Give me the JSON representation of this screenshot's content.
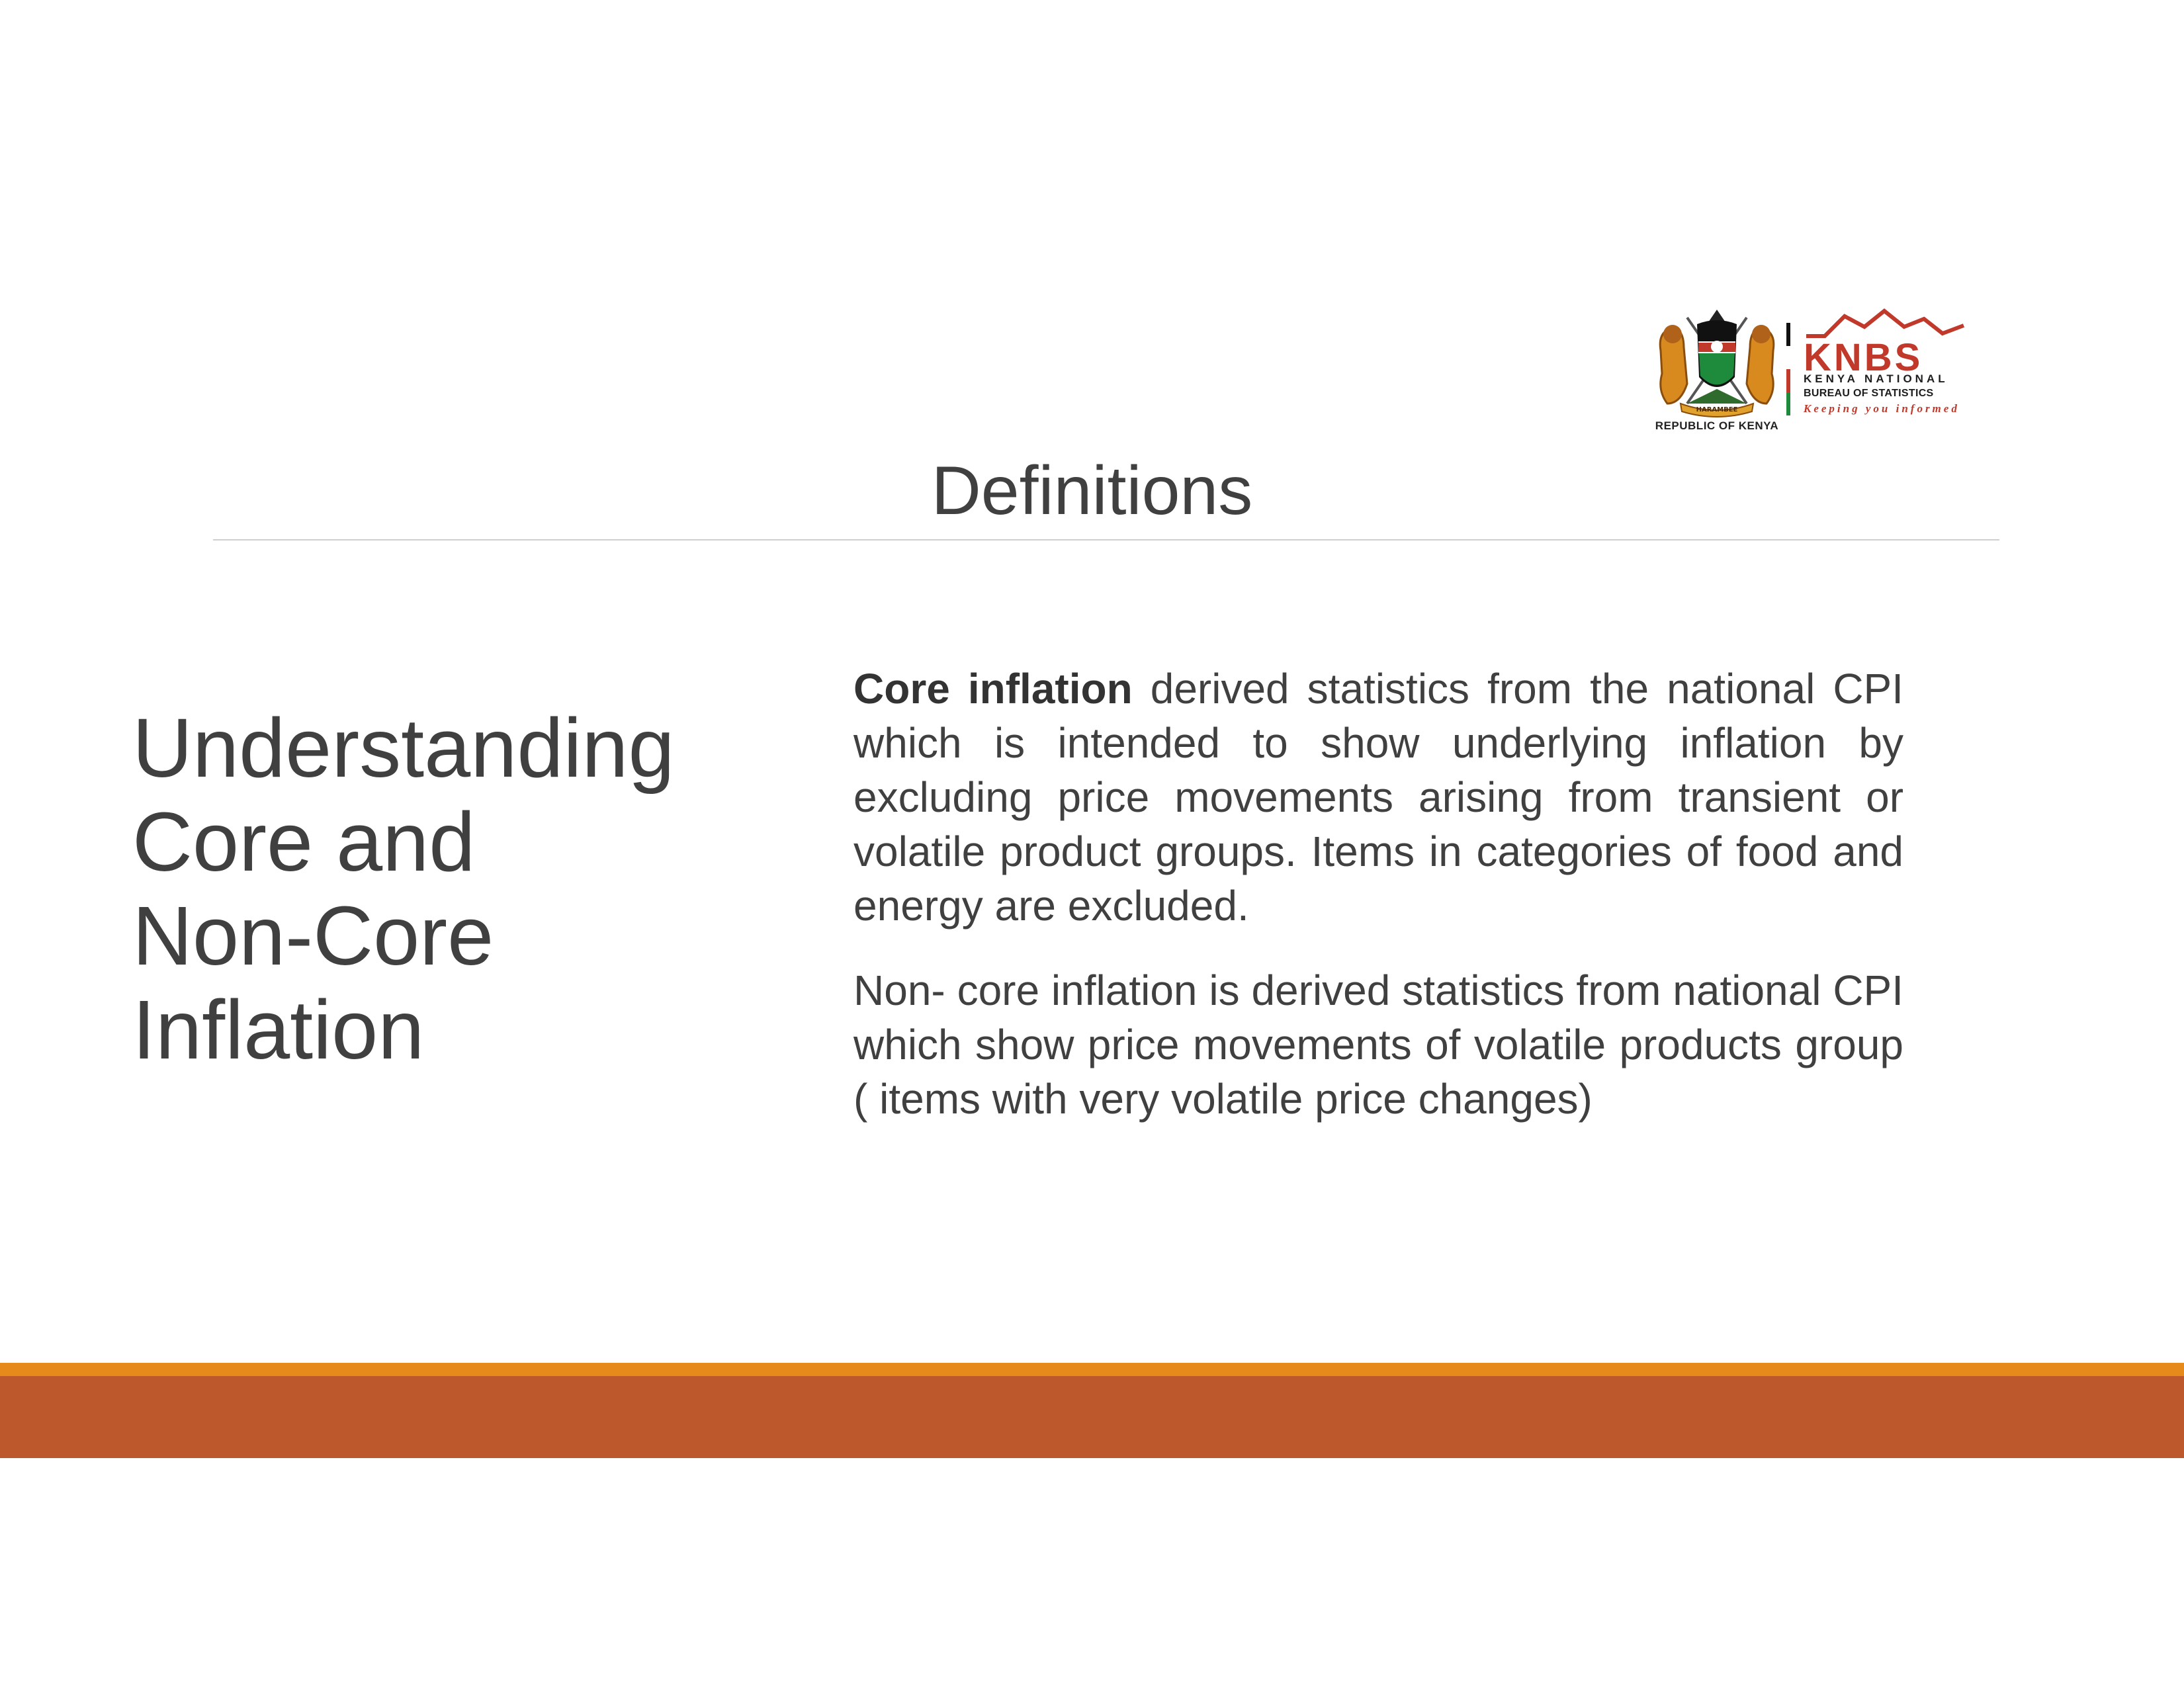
{
  "logo": {
    "republic_label": "REPUBLIC OF KENYA",
    "motto": "HARAMBEE",
    "knbs_acronym": "KNBS",
    "knbs_line1": "KENYA NATIONAL",
    "knbs_line2": "BUREAU OF STATISTICS",
    "knbs_tagline": "Keeping you informed",
    "icons": [
      "kenya-coat-of-arms-icon",
      "knbs-logo-icon"
    ],
    "colors": {
      "knbs_red": "#c0392b",
      "flag_green": "#1e8a3c",
      "flag_red": "#c0392b",
      "flag_black": "#111111"
    }
  },
  "page": {
    "title": "Definitions",
    "side_heading": "Understanding Core and Non-Core Inflation"
  },
  "definitions": [
    {
      "term": "Core inflation",
      "text": " derived statistics from the national CPI which is intended to show underlying inflation by excluding price movements arising from transient or volatile product groups. Items in categories of food and energy are excluded."
    },
    {
      "term": "",
      "text": "Non- core inflation is derived statistics from national CPI which show price movements of volatile products group ( items with very volatile price changes)"
    }
  ],
  "footer": {
    "colors": {
      "stripe": "#e68a1c",
      "band": "#bd582c"
    }
  }
}
